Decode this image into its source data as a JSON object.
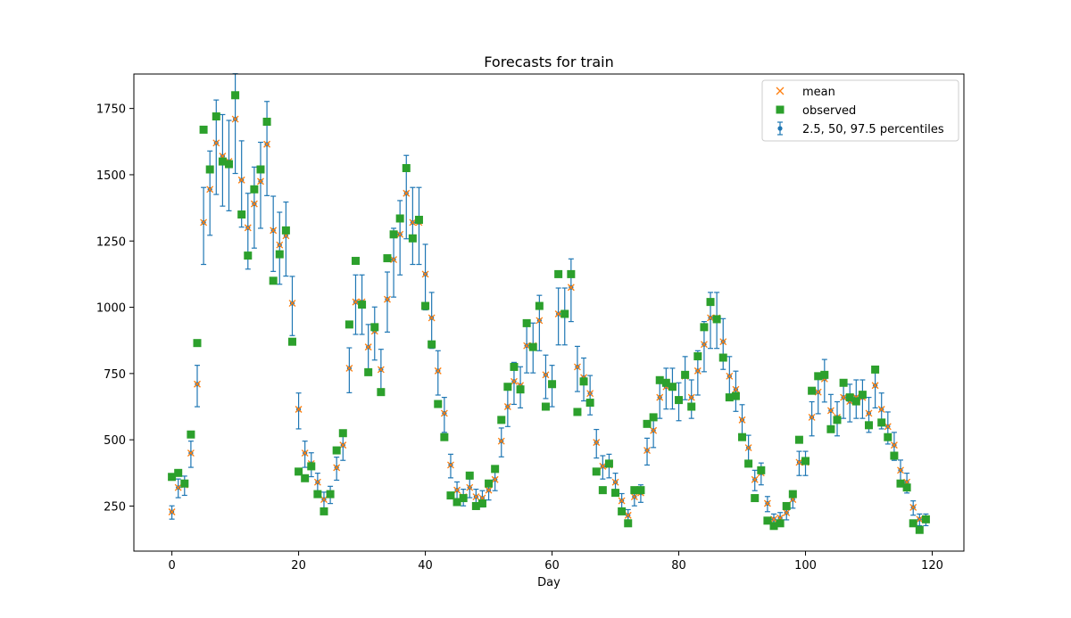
{
  "chart_data": {
    "type": "scatter",
    "title": "Forecasts for train",
    "xlabel": "Day",
    "ylabel": "",
    "xlim": [
      -6,
      125
    ],
    "ylim": [
      80,
      1880
    ],
    "xticks": [
      0,
      20,
      40,
      60,
      80,
      100,
      120
    ],
    "yticks": [
      250,
      500,
      750,
      1000,
      1250,
      1500,
      1750
    ],
    "grid": false,
    "legend_position": "top-right",
    "colors": {
      "mean": "#ff7f0e",
      "observed": "#2ca02c",
      "percentiles": "#1f77b4"
    },
    "legend": [
      {
        "key": "mean",
        "label": "mean"
      },
      {
        "key": "observed",
        "label": "observed"
      },
      {
        "key": "percentiles",
        "label": "2.5, 50, 97.5 percentiles"
      }
    ],
    "series": [
      {
        "name": "mean",
        "marker": "x",
        "x": [
          0,
          1,
          2,
          3,
          4,
          5,
          6,
          7,
          8,
          9,
          10,
          11,
          12,
          13,
          14,
          15,
          16,
          17,
          18,
          19,
          20,
          21,
          22,
          23,
          24,
          25,
          26,
          27,
          28,
          29,
          30,
          31,
          32,
          33,
          34,
          35,
          36,
          37,
          38,
          39,
          40,
          41,
          42,
          43,
          44,
          45,
          46,
          47,
          48,
          49,
          50,
          51,
          52,
          53,
          54,
          55,
          56,
          57,
          58,
          59,
          60,
          61,
          62,
          63,
          64,
          65,
          66,
          67,
          68,
          69,
          70,
          71,
          72,
          73,
          74,
          75,
          76,
          77,
          78,
          79,
          80,
          81,
          82,
          83,
          84,
          85,
          86,
          87,
          88,
          89,
          90,
          91,
          92,
          93,
          94,
          95,
          96,
          97,
          98,
          99,
          100,
          101,
          102,
          103,
          104,
          105,
          106,
          107,
          108,
          109,
          110,
          111,
          112,
          113,
          114,
          115,
          116,
          117,
          118,
          119
        ],
        "y": [
          228,
          320,
          330,
          450,
          710,
          1320,
          1445,
          1620,
          1570,
          1550,
          1710,
          1480,
          1300,
          1390,
          1475,
          1615,
          1290,
          1235,
          1270,
          1015,
          615,
          450,
          410,
          340,
          275,
          295,
          395,
          480,
          770,
          1020,
          1020,
          850,
          910,
          765,
          1030,
          1180,
          1275,
          1430,
          1320,
          1320,
          1125,
          960,
          760,
          600,
          405,
          310,
          285,
          320,
          285,
          280,
          310,
          350,
          495,
          625,
          720,
          705,
          855,
          855,
          950,
          745,
          710,
          975,
          975,
          1075,
          775,
          735,
          675,
          490,
          400,
          405,
          340,
          270,
          215,
          285,
          300,
          460,
          535,
          660,
          700,
          700,
          650,
          740,
          660,
          760,
          860,
          960,
          960,
          870,
          740,
          690,
          575,
          470,
          350,
          375,
          260,
          200,
          205,
          225,
          275,
          415,
          415,
          585,
          680,
          730,
          610,
          585,
          660,
          645,
          660,
          660,
          600,
          705,
          615,
          550,
          480,
          385,
          340,
          245,
          200,
          200
        ]
      },
      {
        "name": "observed",
        "marker": "square",
        "x": [
          0,
          1,
          2,
          3,
          4,
          5,
          6,
          7,
          8,
          9,
          10,
          11,
          12,
          13,
          14,
          15,
          16,
          17,
          18,
          19,
          20,
          21,
          22,
          23,
          24,
          25,
          26,
          27,
          28,
          29,
          30,
          31,
          32,
          33,
          34,
          35,
          36,
          37,
          38,
          39,
          40,
          41,
          42,
          43,
          44,
          45,
          46,
          47,
          48,
          49,
          50,
          51,
          52,
          53,
          54,
          55,
          56,
          57,
          58,
          59,
          60,
          61,
          62,
          63,
          64,
          65,
          66,
          67,
          68,
          69,
          70,
          71,
          72,
          73,
          74,
          75,
          76,
          77,
          78,
          79,
          80,
          81,
          82,
          83,
          84,
          85,
          86,
          87,
          88,
          89,
          90,
          91,
          92,
          93,
          94,
          95,
          96,
          97,
          98,
          99,
          100,
          101,
          102,
          103,
          104,
          105,
          106,
          107,
          108,
          109,
          110,
          111,
          112,
          113,
          114,
          115,
          116,
          117,
          118,
          119
        ],
        "y": [
          360,
          375,
          335,
          520,
          865,
          1670,
          1520,
          1720,
          1550,
          1540,
          1800,
          1350,
          1195,
          1445,
          1520,
          1700,
          1100,
          1200,
          1290,
          870,
          380,
          355,
          400,
          295,
          230,
          295,
          460,
          525,
          935,
          1175,
          1010,
          755,
          925,
          680,
          1185,
          1275,
          1335,
          1525,
          1260,
          1330,
          1005,
          860,
          635,
          510,
          290,
          265,
          280,
          365,
          250,
          260,
          335,
          390,
          575,
          700,
          775,
          690,
          940,
          850,
          1005,
          625,
          710,
          1125,
          975,
          1125,
          605,
          720,
          640,
          380,
          310,
          410,
          300,
          230,
          185,
          310,
          310,
          560,
          585,
          725,
          715,
          700,
          650,
          745,
          625,
          815,
          925,
          1020,
          955,
          810,
          660,
          665,
          510,
          410,
          280,
          385,
          195,
          175,
          185,
          250,
          295,
          500,
          420,
          685,
          740,
          745,
          540,
          575,
          715,
          660,
          645,
          670,
          555,
          765,
          565,
          510,
          440,
          335,
          320,
          185,
          160,
          200
        ]
      },
      {
        "name": "2.5, 50, 97.5 percentiles",
        "marker": "errorbar",
        "x": [
          0,
          1,
          2,
          3,
          4,
          5,
          6,
          7,
          8,
          9,
          10,
          11,
          12,
          13,
          14,
          15,
          16,
          17,
          18,
          19,
          20,
          21,
          22,
          23,
          24,
          25,
          26,
          27,
          28,
          29,
          30,
          31,
          32,
          33,
          34,
          35,
          36,
          37,
          38,
          39,
          40,
          41,
          42,
          43,
          44,
          45,
          46,
          47,
          48,
          49,
          50,
          51,
          52,
          53,
          54,
          55,
          56,
          57,
          58,
          59,
          60,
          61,
          62,
          63,
          64,
          65,
          66,
          67,
          68,
          69,
          70,
          71,
          72,
          73,
          74,
          75,
          76,
          77,
          78,
          79,
          80,
          81,
          82,
          83,
          84,
          85,
          86,
          87,
          88,
          89,
          90,
          91,
          92,
          93,
          94,
          95,
          96,
          97,
          98,
          99,
          100,
          101,
          102,
          103,
          104,
          105,
          106,
          107,
          108,
          109,
          110,
          111,
          112,
          113,
          114,
          115,
          116,
          117,
          118,
          119
        ],
        "median": [
          228,
          320,
          330,
          450,
          710,
          1320,
          1445,
          1620,
          1570,
          1550,
          1710,
          1480,
          1300,
          1390,
          1475,
          1615,
          1290,
          1235,
          1270,
          1015,
          615,
          450,
          410,
          340,
          275,
          295,
          395,
          480,
          770,
          1020,
          1020,
          850,
          910,
          765,
          1030,
          1180,
          1275,
          1430,
          1320,
          1320,
          1125,
          960,
          760,
          600,
          405,
          310,
          285,
          320,
          285,
          280,
          310,
          350,
          495,
          625,
          720,
          705,
          855,
          855,
          950,
          745,
          710,
          975,
          975,
          1075,
          775,
          735,
          675,
          490,
          400,
          405,
          340,
          270,
          215,
          285,
          300,
          460,
          535,
          660,
          700,
          700,
          650,
          740,
          660,
          760,
          860,
          960,
          960,
          870,
          740,
          690,
          575,
          470,
          350,
          375,
          260,
          200,
          205,
          225,
          275,
          415,
          415,
          585,
          680,
          730,
          610,
          585,
          660,
          645,
          660,
          660,
          600,
          705,
          615,
          550,
          480,
          385,
          340,
          245,
          200,
          200
        ],
        "rel_lo": 0.88,
        "rel_hi": 1.1
      }
    ]
  }
}
